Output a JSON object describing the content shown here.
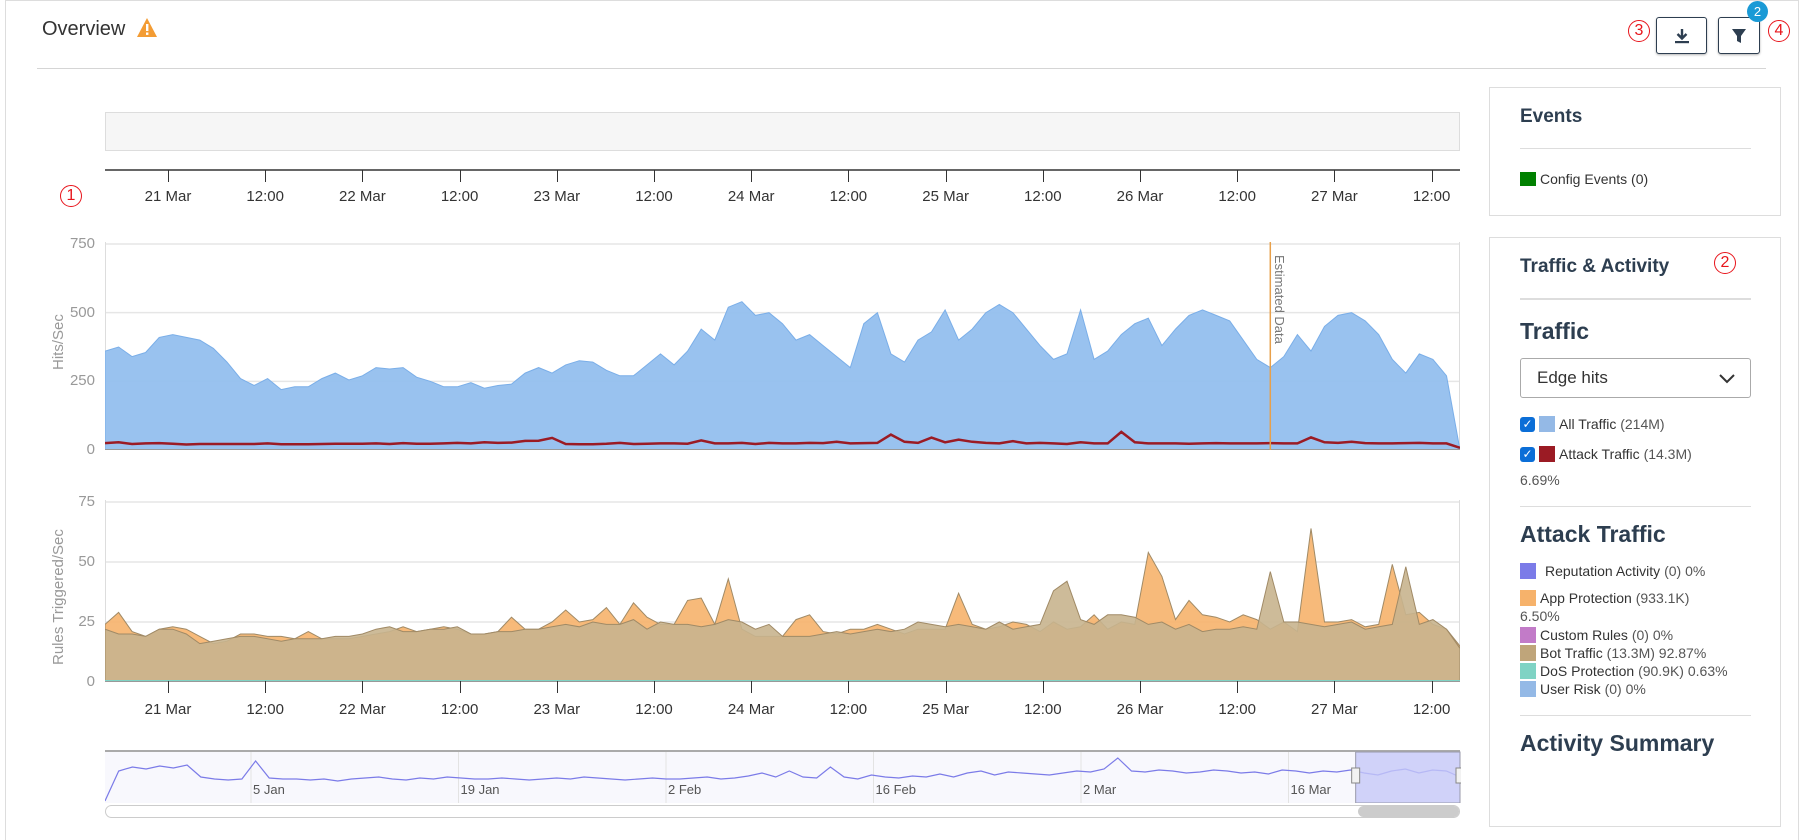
{
  "header": {
    "title": "Overview",
    "download_label": "Download",
    "filter_label": "Filter",
    "filter_badge": "2",
    "annotations": [
      "1",
      "2",
      "3",
      "4"
    ]
  },
  "events_panel": {
    "title": "Events",
    "items": [
      {
        "label": "Config Events (0)",
        "color": "#008000"
      }
    ]
  },
  "traffic_panel": {
    "title": "Traffic & Activity",
    "traffic_heading": "Traffic",
    "dropdown_value": "Edge hits",
    "traffic_items": [
      {
        "label": "All Traffic",
        "count": "(214M)",
        "color": "#94b9e6",
        "checked": true
      },
      {
        "label": "Attack Traffic",
        "count": "(14.3M)",
        "color": "#9b1b24",
        "checked": true
      }
    ],
    "attack_pct": "6.69%",
    "attack_heading": "Attack Traffic",
    "attack_items": [
      {
        "label": "Reputation Activity",
        "rest": "(0) 0%",
        "color": "#7b7be8"
      },
      {
        "label": "App Protection",
        "rest": "(933.1K)",
        "color": "#f6b26b"
      },
      {
        "label": "Custom Rules",
        "rest": "(0) 0%",
        "color": "#c27bc8"
      },
      {
        "label": "Bot Traffic",
        "rest": "(13.3M) 92.87%",
        "color": "#bfa57a"
      },
      {
        "label": "DoS Protection",
        "rest": "(90.9K) 0.63%",
        "color": "#7fd3c4"
      },
      {
        "label": "User Risk",
        "rest": "(0) 0%",
        "color": "#94b9e6"
      }
    ],
    "app_pct": "6.50%",
    "activity_heading": "Activity Summary"
  },
  "timeline": {
    "ticks": [
      "21 Mar",
      "12:00",
      "22 Mar",
      "12:00",
      "23 Mar",
      "12:00",
      "24 Mar",
      "12:00",
      "25 Mar",
      "12:00",
      "26 Mar",
      "12:00",
      "27 Mar",
      "12:00"
    ]
  },
  "chart_data": [
    {
      "type": "area",
      "ylabel": "Hits/Sec",
      "ylim": [
        0,
        750
      ],
      "yticks": [
        "0",
        "250",
        "500",
        "750"
      ],
      "annotation": "Estimated Data",
      "annotation_pos": 0.86,
      "series": [
        {
          "name": "All Traffic",
          "color": "#94bfee",
          "values": [
            360,
            375,
            340,
            355,
            410,
            420,
            410,
            400,
            370,
            320,
            260,
            235,
            260,
            220,
            230,
            230,
            260,
            280,
            255,
            270,
            300,
            295,
            300,
            265,
            250,
            230,
            230,
            245,
            225,
            235,
            240,
            280,
            300,
            280,
            310,
            325,
            320,
            290,
            270,
            270,
            310,
            350,
            310,
            360,
            440,
            400,
            520,
            540,
            490,
            500,
            460,
            400,
            420,
            380,
            340,
            300,
            460,
            500,
            350,
            320,
            400,
            430,
            510,
            400,
            440,
            500,
            530,
            500,
            440,
            380,
            330,
            350,
            510,
            330,
            360,
            420,
            460,
            480,
            380,
            440,
            490,
            510,
            490,
            470,
            400,
            330,
            300,
            340,
            420,
            360,
            450,
            490,
            500,
            470,
            420,
            330,
            280,
            350,
            330,
            270,
            0
          ]
        },
        {
          "name": "Attack Traffic",
          "color": "#9b1b24",
          "values": [
            25,
            28,
            22,
            24,
            25,
            23,
            20,
            22,
            22,
            22,
            22,
            22,
            24,
            21,
            21,
            21,
            22,
            23,
            23,
            23,
            24,
            22,
            25,
            23,
            23,
            24,
            26,
            24,
            28,
            26,
            27,
            33,
            34,
            44,
            22,
            21,
            21,
            23,
            26,
            22,
            23,
            24,
            24,
            23,
            35,
            24,
            24,
            26,
            22,
            26,
            24,
            24,
            26,
            25,
            30,
            24,
            25,
            26,
            56,
            30,
            26,
            45,
            28,
            38,
            30,
            26,
            24,
            32,
            24,
            26,
            24,
            22,
            28,
            24,
            24,
            66,
            28,
            24,
            24,
            24,
            23,
            24,
            25,
            24,
            24,
            24,
            25,
            24,
            24,
            46,
            28,
            26,
            30,
            25,
            24,
            24,
            25,
            26,
            24,
            24,
            8
          ]
        }
      ]
    },
    {
      "type": "area",
      "ylabel": "Rules Triggered/Sec",
      "ylim": [
        0,
        75
      ],
      "yticks": [
        "0",
        "25",
        "50",
        "75"
      ],
      "series": [
        {
          "name": "App Protection",
          "color": "#f6b26b",
          "values": [
            24,
            29,
            21,
            19,
            22,
            23,
            22,
            19,
            16,
            17,
            20,
            20,
            19,
            19,
            18,
            21,
            18,
            18,
            18,
            19,
            20,
            21,
            23,
            21,
            22,
            23,
            22,
            20,
            20,
            21,
            27,
            22,
            22,
            25,
            30,
            25,
            26,
            31,
            24,
            33,
            27,
            24,
            24,
            34,
            35,
            24,
            43,
            22,
            19,
            19,
            19,
            26,
            28,
            21,
            20,
            22,
            22,
            24,
            22,
            20,
            22,
            22,
            22,
            37,
            24,
            22,
            23,
            25,
            24,
            21,
            25,
            22,
            23,
            28,
            22,
            25,
            24,
            54,
            44,
            26,
            34,
            28,
            27,
            25,
            28,
            26,
            22,
            25,
            21,
            64,
            25,
            25,
            26,
            23,
            24,
            49,
            28,
            29,
            24,
            22,
            15
          ]
        },
        {
          "name": "Bot Traffic",
          "color": "#c8b48e",
          "values": [
            22,
            20,
            20,
            19,
            22,
            22,
            20,
            16,
            17,
            18,
            19,
            19,
            18,
            17,
            18,
            18,
            18,
            19,
            19,
            20,
            22,
            23,
            21,
            21,
            22,
            22,
            23,
            20,
            20,
            21,
            21,
            22,
            22,
            23,
            24,
            23,
            25,
            24,
            24,
            26,
            22,
            25,
            24,
            24,
            23,
            24,
            26,
            25,
            22,
            24,
            19,
            19,
            19,
            20,
            21,
            20,
            21,
            22,
            21,
            22,
            25,
            24,
            23,
            24,
            23,
            22,
            25,
            22,
            23,
            24,
            38,
            42,
            26,
            24,
            28,
            28,
            27,
            24,
            25,
            22,
            24,
            21,
            22,
            22,
            23,
            22,
            46,
            25,
            25,
            24,
            23,
            24,
            25,
            22,
            23,
            24,
            48,
            24,
            26,
            22,
            14
          ]
        }
      ]
    },
    {
      "type": "line",
      "name": "navigator",
      "xticks": [
        "5 Jan",
        "19 Jan",
        "2 Feb",
        "16 Feb",
        "2 Mar",
        "16 Mar"
      ],
      "selection": [
        0.923,
        1.0
      ],
      "values": [
        0,
        30,
        34,
        32,
        35,
        33,
        36,
        24,
        22,
        21,
        22,
        40,
        23,
        22,
        22,
        21,
        22,
        20,
        22,
        23,
        24,
        22,
        21,
        23,
        22,
        24,
        23,
        22,
        22,
        23,
        22,
        21,
        22,
        23,
        22,
        24,
        23,
        22,
        21,
        22,
        23,
        22,
        22,
        23,
        24,
        22,
        23,
        25,
        28,
        24,
        30,
        24,
        23,
        34,
        24,
        22,
        26,
        24,
        23,
        25,
        24,
        27,
        24,
        28,
        30,
        26,
        29,
        28,
        27,
        26,
        28,
        30,
        29,
        32,
        43,
        30,
        29,
        31,
        30,
        28,
        29,
        31,
        30,
        28,
        29,
        27,
        31,
        30,
        28,
        30,
        29,
        31,
        28,
        26,
        30,
        32,
        28,
        31,
        30,
        24
      ]
    }
  ]
}
